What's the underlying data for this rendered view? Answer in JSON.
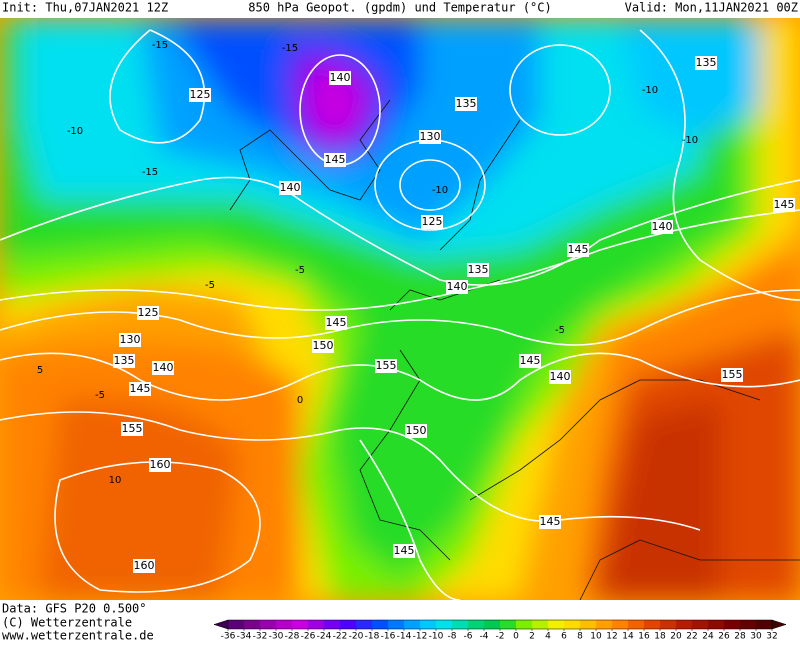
{
  "header": {
    "init": "Init: Thu,07JAN2021 12Z",
    "title": "850 hPa Geopot. (gpdm) und Temperatur (°C)",
    "valid": "Valid: Mon,11JAN2021 00Z"
  },
  "footer": {
    "data": "Data: GFS P20 0.500°",
    "copyright": "(C) Wetterzentrale",
    "url": "www.wetterzentrale.de"
  },
  "geopotential_labels": [
    "125",
    "140",
    "130",
    "145",
    "140",
    "125",
    "135",
    "135",
    "140",
    "145",
    "140",
    "145",
    "135",
    "125",
    "130",
    "135",
    "140",
    "145",
    "150",
    "145",
    "155",
    "145",
    "140",
    "155",
    "155",
    "150",
    "160",
    "160",
    "145",
    "145"
  ],
  "temperature_labels": [
    "-10",
    "-15",
    "-15",
    "-10",
    "-5",
    "-5",
    "-10",
    "-10",
    "-5",
    "0",
    "-5",
    "5",
    "10",
    "-15"
  ],
  "colorbar": {
    "ticks": [
      -36,
      -34,
      -32,
      -30,
      -28,
      -26,
      -24,
      -22,
      -20,
      -18,
      -16,
      -14,
      -12,
      -10,
      -8,
      -6,
      -4,
      -2,
      0,
      2,
      4,
      6,
      8,
      10,
      12,
      14,
      16,
      18,
      20,
      22,
      24,
      26,
      28,
      30,
      32
    ],
    "colors": [
      "#3c0050",
      "#5a0078",
      "#7a0090",
      "#9b00b0",
      "#b400c8",
      "#c800e0",
      "#a000e0",
      "#7800f0",
      "#5000ff",
      "#2828ff",
      "#0050ff",
      "#0078ff",
      "#00a0ff",
      "#00c8ff",
      "#00e0f0",
      "#00dcb4",
      "#00d278",
      "#00c850",
      "#28dc28",
      "#78f000",
      "#b4f000",
      "#f0f000",
      "#ffdc00",
      "#ffbe00",
      "#ffa000",
      "#ff8200",
      "#f06400",
      "#e04600",
      "#c83200",
      "#b41e00",
      "#a01400",
      "#8c0a00",
      "#780000",
      "#640000",
      "#500000",
      "#400000"
    ]
  }
}
